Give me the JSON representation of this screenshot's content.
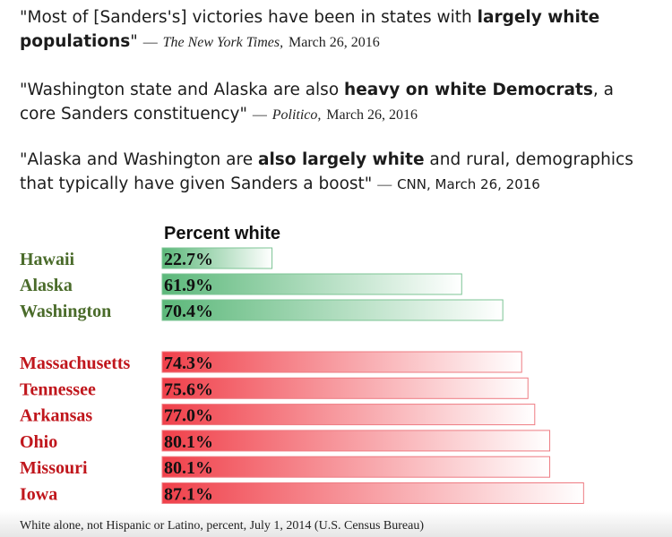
{
  "quotes": [
    {
      "pre": "\"Most of [Sanders's] victories have been in states with ",
      "bold": "largely white populations",
      "post": "\"",
      "source": "The New York Times,",
      "date": "March 26, 2016"
    },
    {
      "pre": "\"Washington state and Alaska are also ",
      "bold": "heavy on white Democrats",
      "post": ", a core Sanders constituency\"",
      "source": "Politico,",
      "date": "March 26, 2016"
    },
    {
      "pre": "\"Alaska and Washington are ",
      "bold": "also largely white",
      "post": " and rural, demographics that typically have given Sanders a boost\"",
      "source": "CNN, March 26, 2016"
    }
  ],
  "colors": {
    "green_label": "#4a6b2a",
    "red_label": "#c0161c",
    "green_bar": "#5cb87a",
    "red_bar": "#f0404a"
  },
  "chart_data": {
    "type": "bar",
    "orientation": "horizontal",
    "title": "Percent white",
    "xlim": [
      0,
      100
    ],
    "groups": [
      {
        "name": "green",
        "categories": [
          "Hawaii",
          "Alaska",
          "Washington"
        ],
        "values": [
          22.7,
          61.9,
          70.4
        ],
        "labels": [
          "22.7%",
          "61.9%",
          "70.4%"
        ]
      },
      {
        "name": "red",
        "categories": [
          "Massachusetts",
          "Tennessee",
          "Arkansas",
          "Ohio",
          "Missouri",
          "Iowa"
        ],
        "values": [
          74.3,
          75.6,
          77.0,
          80.1,
          80.1,
          87.1
        ],
        "labels": [
          "74.3%",
          "75.6%",
          "77.0%",
          "80.1%",
          "80.1%",
          "87.1%"
        ]
      }
    ],
    "footnote": "White alone, not Hispanic or Latino, percent, July 1, 2014  (U.S. Census Bureau)"
  }
}
